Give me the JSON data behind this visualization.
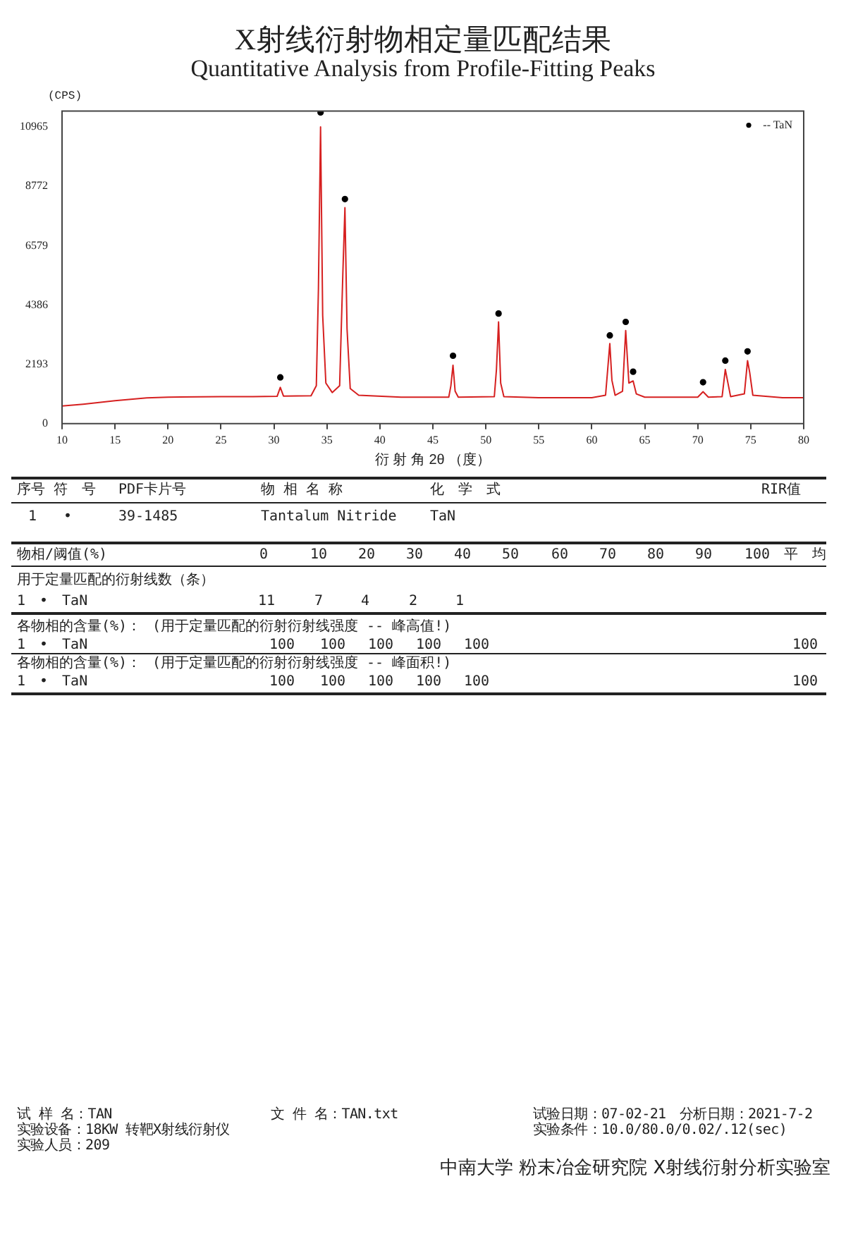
{
  "chart_data": {
    "type": "line",
    "title": "X射线衍射物相定量匹配结果",
    "subtitle": "Quantitative Analysis from Profile-Fitting Peaks",
    "xlabel": "衍 射 角 2θ （度）",
    "ylabel": "(CPS)",
    "xlim": [
      10,
      80
    ],
    "xticks": [
      10,
      15,
      20,
      25,
      30,
      35,
      40,
      45,
      50,
      55,
      60,
      65,
      70,
      75,
      80
    ],
    "ylim": [
      0,
      11550
    ],
    "yticks": [
      0,
      2193,
      4386,
      6579,
      8772,
      10965
    ],
    "grid": false,
    "legend": "top right",
    "series": [
      {
        "color": "#d62020",
        "marker": "none",
        "line_style": "solid",
        "x": [
          10,
          12,
          15,
          18,
          20,
          25,
          28,
          30.3,
          30.6,
          30.9,
          33.5,
          34.0,
          34.2,
          34.4,
          34.6,
          34.9,
          35.5,
          36.2,
          36.5,
          36.7,
          36.9,
          37.2,
          38,
          42,
          46.5,
          46.7,
          46.9,
          47.1,
          47.4,
          50.8,
          51.0,
          51.2,
          51.4,
          51.7,
          55,
          60,
          61.3,
          61.5,
          61.7,
          61.9,
          62.2,
          62.9,
          63.2,
          63.5,
          63.9,
          64.2,
          65,
          70,
          70.5,
          71,
          72.3,
          72.6,
          72.8,
          73.1,
          74.4,
          74.7,
          74.9,
          75.2,
          78,
          80
        ],
        "values": [
          650,
          720,
          850,
          950,
          980,
          1000,
          1000,
          1010,
          1340,
          1020,
          1030,
          1400,
          5000,
          10965,
          4000,
          1500,
          1150,
          1400,
          5500,
          7980,
          3500,
          1300,
          1050,
          980,
          980,
          1400,
          2160,
          1200,
          980,
          1000,
          2000,
          3760,
          1500,
          1000,
          960,
          960,
          1050,
          2000,
          2960,
          1600,
          1050,
          1200,
          3440,
          1500,
          1580,
          1100,
          980,
          980,
          1180,
          980,
          1000,
          2000,
          1600,
          1000,
          1100,
          2330,
          1900,
          1050,
          960,
          960
        ]
      },
      {
        "type": "scatter",
        "name": "-- TaN",
        "color": "#000000",
        "marker": "circle",
        "x": [
          30.6,
          34.4,
          36.7,
          46.9,
          51.2,
          61.7,
          63.2,
          63.9,
          70.5,
          72.6,
          74.7
        ],
        "values": [
          1710,
          11500,
          8300,
          2510,
          4070,
          3260,
          3760,
          1920,
          1530,
          2330,
          2670
        ]
      }
    ],
    "annotations": [
      "序号 符　号",
      "PDF卡片号",
      "物 相 名 称",
      "化　学　式",
      "RIR值",
      "1",
      "•",
      "39-1485",
      "Tantalum Nitride",
      "TaN",
      "物相/阈值(%)",
      "0",
      "10",
      "20",
      "30",
      "40",
      "50",
      "60",
      "70",
      "80",
      "90",
      "100",
      "平　均",
      "用于定量匹配的衍射线数（条）",
      "1　•　TaN",
      "11",
      "7",
      "4",
      "2",
      "1",
      "各物相的含量(%)：",
      "(用于定量匹配的衍射衍射线强度 -- 峰高值!)",
      "1　•　TaN",
      "100",
      "100",
      "100",
      "100",
      "100",
      "100",
      "各物相的含量(%)：",
      "(用于定量匹配的衍射衍射线强度 -- 峰面积!)",
      "1　•　TaN",
      "100",
      "100",
      "100",
      "100",
      "100",
      "100",
      "试 样 名：TAN",
      "文 件 名：TAN.txt",
      "试验日期：07-02-21　分析日期：2021-7-2",
      "实验设备：18KW 转靶X射线衍射仪",
      "实验条件：10.0/80.0/0.02/.12(sec)",
      "实验人员：209",
      "中南大学 粉末冶金研究院 X射线衍射分析实验室"
    ]
  }
}
